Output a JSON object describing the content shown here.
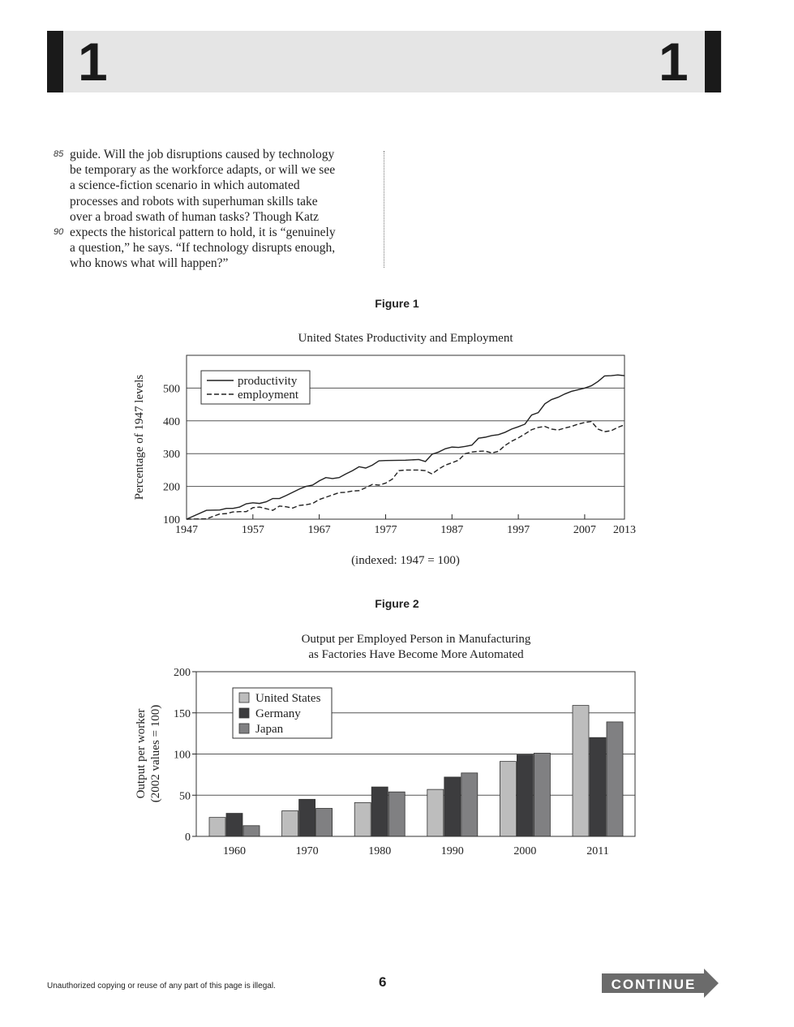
{
  "header": {
    "section_left": "1",
    "section_right": "1"
  },
  "passage": {
    "lines": [
      {
        "num": "85",
        "text": "guide. Will the job disruptions caused by technology"
      },
      {
        "num": "",
        "text": "be temporary as the workforce adapts, or will we see"
      },
      {
        "num": "",
        "text": "a science-fiction scenario in which automated"
      },
      {
        "num": "",
        "text": "processes and robots with superhuman skills take"
      },
      {
        "num": "",
        "text": "over a broad swath of human tasks? Though Katz"
      },
      {
        "num": "90",
        "text": "expects the historical pattern to hold, it is “genuinely"
      },
      {
        "num": "",
        "text": "a question,” he says. “If technology disrupts enough,"
      },
      {
        "num": "",
        "text": "who knows what will happen?”"
      }
    ]
  },
  "figure1_label": "Figure 1",
  "figure2_label": "Figure 2",
  "chart_data": [
    {
      "type": "line",
      "title": "United States Productivity and Employment",
      "ylabel": "Percentage of 1947 levels",
      "xlabel": "(indexed: 1947 = 100)",
      "xlim": [
        1947,
        2013
      ],
      "ylim": [
        100,
        600
      ],
      "xticks": [
        "1947",
        "1957",
        "1967",
        "1977",
        "1987",
        "1997",
        "2007",
        "2013"
      ],
      "yticks": [
        "100",
        "200",
        "300",
        "400",
        "500"
      ],
      "grid": "horizontal",
      "legend": "top-left",
      "series": [
        {
          "name": "productivity",
          "style": "solid",
          "points": [
            [
              1947,
              100
            ],
            [
              1950,
              127
            ],
            [
              1952,
              128
            ],
            [
              1953,
              133
            ],
            [
              1954,
              133
            ],
            [
              1955,
              137
            ],
            [
              1956,
              147
            ],
            [
              1957,
              150
            ],
            [
              1958,
              148
            ],
            [
              1959,
              153
            ],
            [
              1960,
              163
            ],
            [
              1961,
              163
            ],
            [
              1962,
              172
            ],
            [
              1963,
              182
            ],
            [
              1964,
              192
            ],
            [
              1965,
              200
            ],
            [
              1966,
              204
            ],
            [
              1967,
              217
            ],
            [
              1968,
              227
            ],
            [
              1969,
              224
            ],
            [
              1970,
              227
            ],
            [
              1971,
              238
            ],
            [
              1972,
              248
            ],
            [
              1973,
              260
            ],
            [
              1974,
              256
            ],
            [
              1975,
              265
            ],
            [
              1976,
              278
            ],
            [
              1977,
              279
            ],
            [
              1980,
              280
            ],
            [
              1982,
              282
            ],
            [
              1983,
              276
            ],
            [
              1984,
              298
            ],
            [
              1985,
              305
            ],
            [
              1986,
              315
            ],
            [
              1987,
              320
            ],
            [
              1988,
              319
            ],
            [
              1989,
              322
            ],
            [
              1990,
              326
            ],
            [
              1991,
              347
            ],
            [
              1992,
              350
            ],
            [
              1993,
              355
            ],
            [
              1994,
              358
            ],
            [
              1995,
              365
            ],
            [
              1996,
              375
            ],
            [
              1997,
              382
            ],
            [
              1998,
              390
            ],
            [
              1999,
              418
            ],
            [
              2000,
              425
            ],
            [
              2001,
              452
            ],
            [
              2002,
              465
            ],
            [
              2003,
              472
            ],
            [
              2004,
              482
            ],
            [
              2005,
              490
            ],
            [
              2006,
              495
            ],
            [
              2007,
              500
            ],
            [
              2008,
              507
            ],
            [
              2009,
              520
            ],
            [
              2010,
              537
            ],
            [
              2011,
              538
            ],
            [
              2012,
              540
            ],
            [
              2013,
              538
            ]
          ]
        },
        {
          "name": "employment",
          "style": "dashed",
          "points": [
            [
              1947,
              100
            ],
            [
              1950,
              101
            ],
            [
              1952,
              116
            ],
            [
              1953,
              117
            ],
            [
              1954,
              122
            ],
            [
              1955,
              123
            ],
            [
              1956,
              123
            ],
            [
              1957,
              135
            ],
            [
              1958,
              137
            ],
            [
              1959,
              132
            ],
            [
              1960,
              127
            ],
            [
              1961,
              140
            ],
            [
              1962,
              138
            ],
            [
              1963,
              134
            ],
            [
              1964,
              142
            ],
            [
              1965,
              144
            ],
            [
              1966,
              148
            ],
            [
              1967,
              160
            ],
            [
              1968,
              167
            ],
            [
              1969,
              174
            ],
            [
              1970,
              181
            ],
            [
              1971,
              182
            ],
            [
              1972,
              186
            ],
            [
              1973,
              187
            ],
            [
              1974,
              196
            ],
            [
              1975,
              206
            ],
            [
              1976,
              204
            ],
            [
              1977,
              210
            ],
            [
              1978,
              222
            ],
            [
              1979,
              248
            ],
            [
              1980,
              250
            ],
            [
              1982,
              250
            ],
            [
              1983,
              248
            ],
            [
              1984,
              238
            ],
            [
              1985,
              253
            ],
            [
              1986,
              265
            ],
            [
              1987,
              272
            ],
            [
              1988,
              280
            ],
            [
              1989,
              300
            ],
            [
              1990,
              305
            ],
            [
              1991,
              307
            ],
            [
              1992,
              308
            ],
            [
              1993,
              302
            ],
            [
              1994,
              307
            ],
            [
              1995,
              325
            ],
            [
              1996,
              338
            ],
            [
              1997,
              348
            ],
            [
              1998,
              360
            ],
            [
              1999,
              373
            ],
            [
              2000,
              380
            ],
            [
              2001,
              383
            ],
            [
              2002,
              375
            ],
            [
              2003,
              372
            ],
            [
              2004,
              378
            ],
            [
              2005,
              383
            ],
            [
              2006,
              390
            ],
            [
              2007,
              395
            ],
            [
              2008,
              398
            ],
            [
              2009,
              375
            ],
            [
              2010,
              367
            ],
            [
              2011,
              370
            ],
            [
              2012,
              380
            ],
            [
              2013,
              388
            ]
          ]
        }
      ]
    },
    {
      "type": "bar",
      "title": [
        "Output per Employed Person in Manufacturing",
        "as Factories Have Become More Automated"
      ],
      "ylabel": [
        "Output per worker",
        "(2002 values = 100)"
      ],
      "categories": [
        "1960",
        "1970",
        "1980",
        "1990",
        "2000",
        "2011"
      ],
      "ylim": [
        0,
        200
      ],
      "yticks": [
        "0",
        "50",
        "100",
        "150",
        "200"
      ],
      "grid": "horizontal",
      "legend": "top-left",
      "series": [
        {
          "name": "United States",
          "color": "#bdbdbd",
          "values": [
            23,
            31,
            41,
            57,
            91,
            159
          ]
        },
        {
          "name": "Germany",
          "color": "#3c3c3e",
          "values": [
            28,
            45,
            60,
            72,
            99,
            120
          ]
        },
        {
          "name": "Japan",
          "color": "#808082",
          "values": [
            13,
            34,
            54,
            77,
            101,
            139
          ]
        }
      ]
    }
  ],
  "footer": {
    "notice": "Unauthorized copying or reuse of any part of this page is illegal.",
    "page": "6",
    "continue": "CONTINUE"
  }
}
